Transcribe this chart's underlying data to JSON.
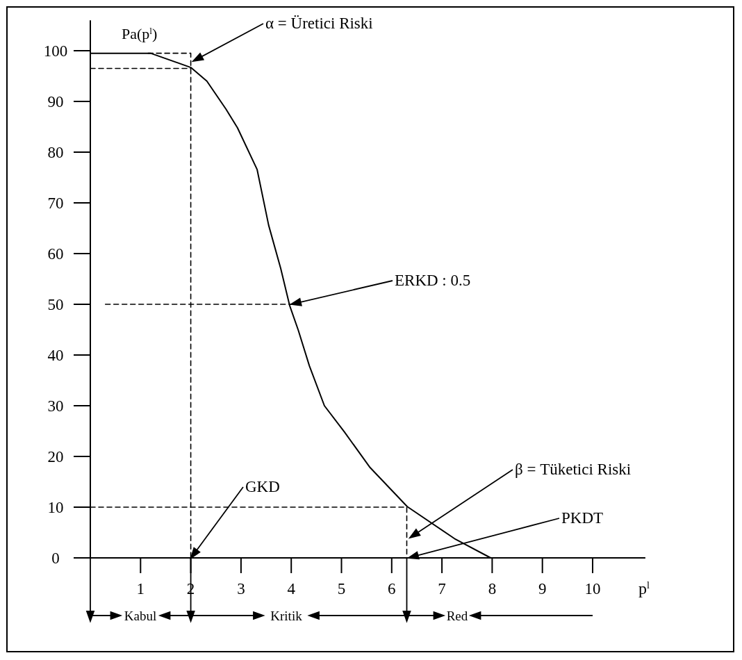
{
  "chart_data": {
    "type": "line",
    "xlabel": "p$^{l}$",
    "ylabel": "Pa(p$^{l}$)",
    "xlim": [
      0,
      11.05
    ],
    "ylim": [
      0,
      106
    ],
    "xticks": [
      1,
      2,
      3,
      4,
      5,
      6,
      7,
      8,
      9,
      10
    ],
    "yticks": [
      0,
      10,
      20,
      30,
      40,
      50,
      60,
      70,
      80,
      90,
      100
    ],
    "grid": false,
    "marker": "none",
    "series": [
      {
        "color": "#000000",
        "line_style": "solid",
        "x": [
          0,
          1.2,
          2.0,
          2.32,
          2.7,
          2.93,
          3.32,
          3.55,
          3.79,
          3.97,
          4.14,
          4.36,
          4.66,
          5.06,
          5.57,
          6.31,
          7.25,
          7.97
        ],
        "values": [
          99.5,
          99.5,
          96.7,
          94.0,
          88.5,
          84.8,
          76.6,
          65.6,
          57.1,
          49.7,
          44.9,
          37.9,
          30.0,
          24.8,
          17.8,
          10.1,
          3.8,
          0
        ]
      },
      {
        "color": "#000000",
        "line_style": "dashed",
        "x": [
          1.15,
          2,
          2
        ],
        "values": [
          99.5,
          99.5,
          0
        ]
      },
      {
        "color": "#000000",
        "line_style": "dashed",
        "x": [
          0,
          2
        ],
        "values": [
          96.5,
          96.5
        ]
      },
      {
        "color": "#000000",
        "line_style": "dashed",
        "x": [
          0.3,
          4
        ],
        "values": [
          50,
          50
        ]
      },
      {
        "color": "#000000",
        "line_style": "dashed",
        "x": [
          0,
          6.3,
          6.3
        ],
        "values": [
          10,
          10,
          0
        ]
      }
    ],
    "annotations": [
      "α = Üretici Riski",
      "ERKD : 0.5",
      "GKD",
      "β = Tüketici Riski",
      "PKDT",
      "Kabul",
      "Kritik",
      "Red"
    ]
  }
}
